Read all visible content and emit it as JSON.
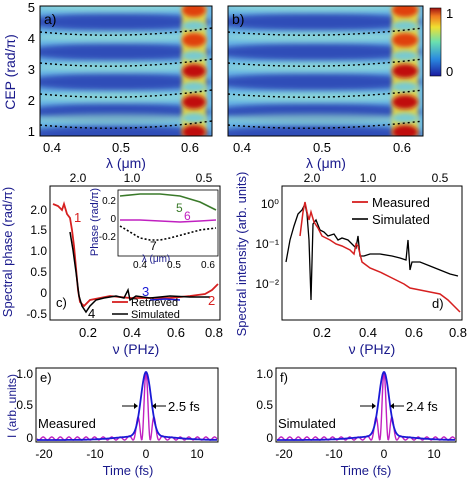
{
  "colors": {
    "navy": "#1a1a8c",
    "red": "#d62020",
    "black": "#000000",
    "blue": "#1a1ad6",
    "green": "#3a7a2a",
    "magenta": "#c020c0"
  },
  "top": {
    "ylabel": "CEP (rad/π)",
    "yticks": [
      "5",
      "4",
      "3",
      "2",
      "1"
    ],
    "xticks": [
      "0.4",
      "0.5",
      "0.6"
    ],
    "xlabel": "λ (μm)",
    "panel_a": "a)",
    "panel_b": "b)",
    "colorbar_ticks": [
      "1",
      "0"
    ]
  },
  "panel_c": {
    "label": "c)",
    "ylabel": "Spectral phase (rad/π)",
    "xlabel": "ν (PHz)",
    "yticks": [
      "2.0",
      "1.5",
      "1.0",
      "0.5",
      "0",
      "-0.5"
    ],
    "xticks": [
      "0.2",
      "0.4",
      "0.6",
      "0.8"
    ],
    "top_ticks": [
      "2.0",
      "1.0",
      "0.5"
    ],
    "curve_labels": [
      "1",
      "2",
      "3",
      "4"
    ],
    "legend": [
      "Retrieved",
      "Simulated"
    ],
    "inset": {
      "ylabel": "Phase (rad/π)",
      "xlabel": "λ (μm)",
      "yticks": [
        "0.2",
        "0",
        "-0.2"
      ],
      "xticks": [
        "0.4",
        "0.5",
        "0.6"
      ],
      "curve_labels": [
        "5",
        "6",
        "7"
      ]
    }
  },
  "panel_d": {
    "label": "d)",
    "ylabel": "Spectral intensity (arb. units)",
    "xlabel": "ν (PHz)",
    "yticks": [
      "10⁰",
      "10⁻¹",
      "10⁻²"
    ],
    "xticks": [
      "0.2",
      "0.4",
      "0.6",
      "0.8"
    ],
    "top_ticks": [
      "2.0",
      "1.0",
      "0.5"
    ],
    "legend": [
      "Measured",
      "Simulated"
    ]
  },
  "panel_e": {
    "label": "e)",
    "text": "Measured",
    "fwhm": "2.5 fs",
    "ylabel": "I (arb. units)",
    "yticks": [
      "1.0",
      "0.5",
      "0"
    ],
    "xticks": [
      "-20",
      "-10",
      "0",
      "10"
    ],
    "xlabel": "Time (fs)"
  },
  "panel_f": {
    "label": "f)",
    "text": "Simulated",
    "fwhm": "2.4 fs",
    "yticks": [
      "1.0",
      "0.5",
      "0"
    ],
    "xticks": [
      "-20",
      "-10",
      "0",
      "10"
    ],
    "xlabel": "Time (fs)"
  }
}
